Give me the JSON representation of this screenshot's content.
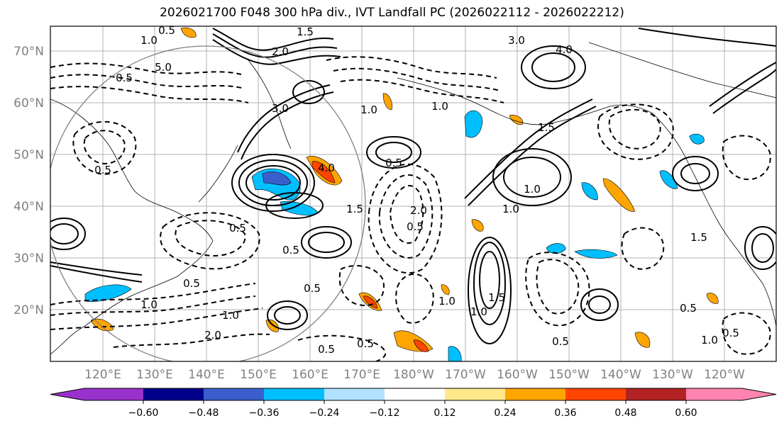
{
  "title": "2026021700 F048 300 hPa div., IVT Landfall PC (2026022112 - 2026022212)",
  "lat_labels": [
    "70°N",
    "60°N",
    "50°N",
    "40°N",
    "30°N",
    "20°N"
  ],
  "lon_labels": [
    "120°E",
    "130°E",
    "140°E",
    "150°E",
    "160°E",
    "170°E",
    "180°W",
    "170°W",
    "160°W",
    "150°W",
    "140°W",
    "130°W",
    "120°W"
  ],
  "colorbar": {
    "colors": [
      "#9932CC",
      "#00008B",
      "#3A5FCD",
      "#00BFFF",
      "#B0E2FF",
      "#FFFFFF",
      "#FFE78A",
      "#FFA500",
      "#FF4500",
      "#B22222",
      "#FF85B0"
    ],
    "under_color": "#9932CC",
    "over_color": "#FF85B0",
    "tick_labels": [
      "−0.60",
      "−0.48",
      "−0.36",
      "−0.24",
      "−0.12",
      "0.12",
      "0.24",
      "0.36",
      "0.48",
      "0.60"
    ]
  },
  "contour_labels": [
    "0.5",
    "1.0",
    "1.5",
    "2.0",
    "3.0",
    "4.0",
    "5.0",
    "0.5",
    "1.0",
    "0.5",
    "1.0",
    "1.5",
    "2.0",
    "0.5",
    "0.5",
    "1.0",
    "0.5",
    "1.0",
    "1.0",
    "1.5",
    "0.5",
    "2.0",
    "1.0",
    "3.0",
    "4.0",
    "1.5",
    "0.5",
    "1.0",
    "0.5",
    "0.5",
    "1.0",
    "0.5",
    "1.5",
    "0.5",
    "1.0",
    "0.5",
    "0.5"
  ]
}
